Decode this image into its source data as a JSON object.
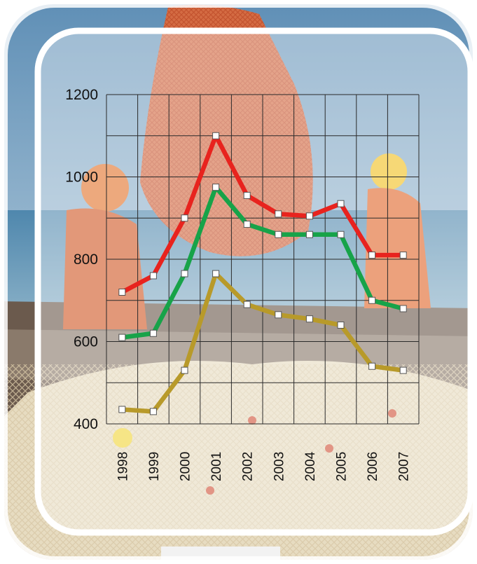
{
  "chart_data": {
    "type": "line",
    "title": "",
    "xlabel": "",
    "ylabel": "",
    "categories": [
      "1998",
      "1999",
      "2000",
      "2001",
      "2002",
      "2003",
      "2004",
      "2005",
      "2006",
      "2007"
    ],
    "ylim": [
      400,
      1200
    ],
    "yticks": [
      400,
      600,
      800,
      1000,
      1200
    ],
    "grid": true,
    "legend": "none",
    "background": "photo of fishermen hauling a net on a boat at sea",
    "series": [
      {
        "color": "#e8231e",
        "values": [
          720,
          760,
          900,
          1100,
          955,
          910,
          905,
          935,
          810,
          810
        ]
      },
      {
        "color": "#17a349",
        "values": [
          610,
          620,
          765,
          975,
          885,
          860,
          860,
          860,
          700,
          680
        ]
      },
      {
        "color": "#b89a2a",
        "values": [
          435,
          430,
          530,
          765,
          690,
          665,
          655,
          640,
          540,
          530
        ]
      }
    ]
  }
}
